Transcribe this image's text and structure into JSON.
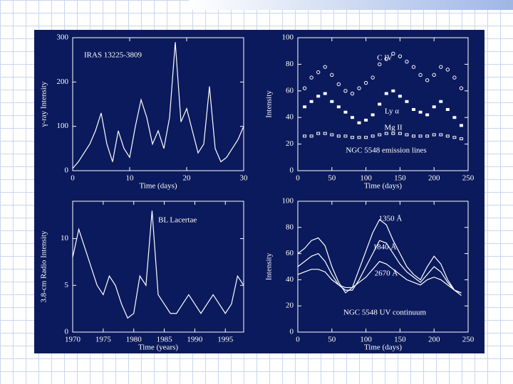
{
  "chart_data": [
    {
      "type": "line",
      "title": "IRAS 13225-3809",
      "xlabel": "Time (days)",
      "ylabel": "γ-ray Intensity",
      "x": [
        0,
        1,
        2,
        3,
        4,
        5,
        6,
        7,
        8,
        9,
        10,
        11,
        12,
        13,
        14,
        15,
        16,
        17,
        18,
        19,
        20,
        21,
        22,
        23,
        24,
        25,
        26,
        27,
        28,
        29,
        30
      ],
      "values": [
        5,
        20,
        40,
        60,
        90,
        130,
        60,
        20,
        90,
        50,
        30,
        100,
        160,
        120,
        60,
        90,
        50,
        120,
        290,
        110,
        140,
        90,
        40,
        60,
        190,
        50,
        20,
        30,
        50,
        70,
        100
      ],
      "color": "#ffffff",
      "xlim": [
        0,
        30
      ],
      "ylim": [
        0,
        300
      ],
      "xticks": [
        0,
        10,
        20,
        30
      ],
      "yticks": [
        0,
        100,
        200,
        300
      ]
    },
    {
      "type": "scatter",
      "title": "NGC 5548 emission lines",
      "xlabel": "Time (days)",
      "ylabel": "Intensity",
      "x": [
        10,
        20,
        30,
        40,
        50,
        60,
        70,
        80,
        90,
        100,
        110,
        120,
        130,
        140,
        150,
        160,
        170,
        180,
        190,
        200,
        210,
        220,
        230,
        240
      ],
      "series": [
        {
          "name": "C IV",
          "color": "#ffffff",
          "values": [
            62,
            70,
            74,
            78,
            72,
            65,
            60,
            58,
            62,
            66,
            70,
            80,
            84,
            88,
            86,
            82,
            78,
            72,
            68,
            72,
            78,
            76,
            70,
            62
          ]
        },
        {
          "name": "Ly α",
          "color": "#ffffff",
          "values": [
            48,
            52,
            56,
            58,
            52,
            48,
            44,
            40,
            36,
            38,
            42,
            50,
            58,
            60,
            56,
            52,
            46,
            44,
            42,
            48,
            52,
            46,
            40,
            34
          ]
        },
        {
          "name": "Mg II",
          "color": "#ffffff",
          "values": [
            26,
            26,
            28,
            28,
            27,
            26,
            26,
            25,
            25,
            25,
            26,
            27,
            28,
            28,
            28,
            27,
            26,
            26,
            26,
            27,
            27,
            26,
            25,
            24
          ]
        }
      ],
      "xlim": [
        0,
        250
      ],
      "ylim": [
        0,
        100
      ],
      "xticks": [
        0,
        50,
        100,
        150,
        200,
        250
      ],
      "yticks": [
        0,
        20,
        40,
        60,
        80,
        100
      ]
    },
    {
      "type": "line",
      "title": "BL Lacertae",
      "xlabel": "Time (years)",
      "ylabel": "3.8-cm Radio Intensity",
      "x": [
        1970,
        1971,
        1972,
        1973,
        1974,
        1975,
        1976,
        1977,
        1978,
        1979,
        1980,
        1981,
        1982,
        1983,
        1984,
        1985,
        1986,
        1987,
        1988,
        1989,
        1990,
        1991,
        1992,
        1993,
        1994,
        1995,
        1996,
        1997,
        1998
      ],
      "values": [
        8,
        11,
        9,
        7,
        5,
        4,
        6,
        5,
        3,
        1.5,
        2,
        6,
        5,
        13,
        4,
        3,
        2,
        2,
        3,
        4,
        3,
        2,
        3,
        4,
        3,
        2,
        3,
        6,
        5
      ],
      "color": "#ffffff",
      "xlim": [
        1970,
        1998
      ],
      "ylim": [
        0,
        14
      ],
      "xticks": [
        1970,
        1975,
        1980,
        1985,
        1990,
        1995
      ],
      "yticks": [
        0,
        5,
        10
      ]
    },
    {
      "type": "line",
      "title": "NGC 5548 UV continuum",
      "xlabel": "Time (days)",
      "ylabel": "Intensity",
      "x": [
        0,
        10,
        20,
        30,
        40,
        50,
        60,
        70,
        80,
        90,
        100,
        110,
        120,
        130,
        140,
        150,
        160,
        170,
        180,
        190,
        200,
        210,
        220,
        230,
        240
      ],
      "series": [
        {
          "name": "1350 Å",
          "color": "#ffffff",
          "values": [
            60,
            64,
            70,
            72,
            66,
            50,
            38,
            30,
            34,
            48,
            62,
            76,
            86,
            82,
            70,
            60,
            50,
            44,
            40,
            50,
            58,
            52,
            40,
            32,
            28
          ]
        },
        {
          "name": "1840 Å",
          "color": "#ffffff",
          "values": [
            50,
            54,
            58,
            60,
            54,
            44,
            36,
            32,
            32,
            40,
            50,
            60,
            70,
            68,
            60,
            52,
            46,
            42,
            38,
            44,
            50,
            46,
            38,
            32,
            30
          ]
        },
        {
          "name": "2670 Å",
          "color": "#ffffff",
          "values": [
            44,
            46,
            48,
            48,
            46,
            40,
            36,
            34,
            34,
            38,
            42,
            48,
            54,
            52,
            48,
            44,
            40,
            38,
            36,
            40,
            42,
            40,
            36,
            32,
            30
          ]
        }
      ],
      "xlim": [
        0,
        250
      ],
      "ylim": [
        0,
        100
      ],
      "xticks": [
        0,
        50,
        100,
        150,
        200,
        250
      ],
      "yticks": [
        0,
        20,
        40,
        60,
        80,
        100
      ]
    }
  ]
}
